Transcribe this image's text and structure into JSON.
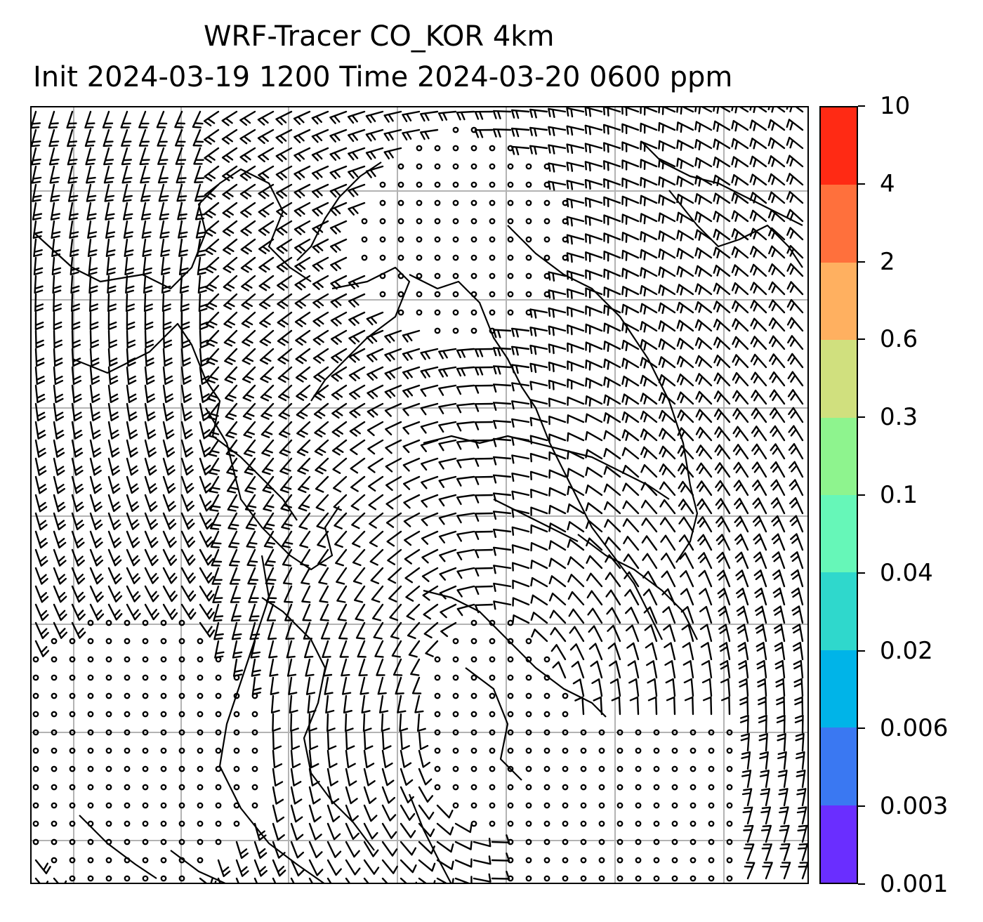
{
  "title": {
    "line1": "WRF-Tracer CO_KOR 4km",
    "line2": "Init 2024-03-19 1200 Time 2024-03-20 0600 ppm"
  },
  "map": {
    "background_color": "#ffffff",
    "gridline_color": "#b3b3b3",
    "coastline_color": "#000000",
    "barb_color": "#000000",
    "wind_field": "wind barbs with calm circles"
  },
  "colorbar": {
    "levels": [
      "0.001",
      "0.003",
      "0.006",
      "0.02",
      "0.04",
      "0.1",
      "0.3",
      "0.6",
      "2",
      "4",
      "10"
    ],
    "colors": [
      "#6a2eff",
      "#3a78f2",
      "#00b4e8",
      "#2fd8cc",
      "#66f7b8",
      "#8ef48e",
      "#d0e07e",
      "#ffb060",
      "#ff703c",
      "#ff2a14"
    ]
  }
}
